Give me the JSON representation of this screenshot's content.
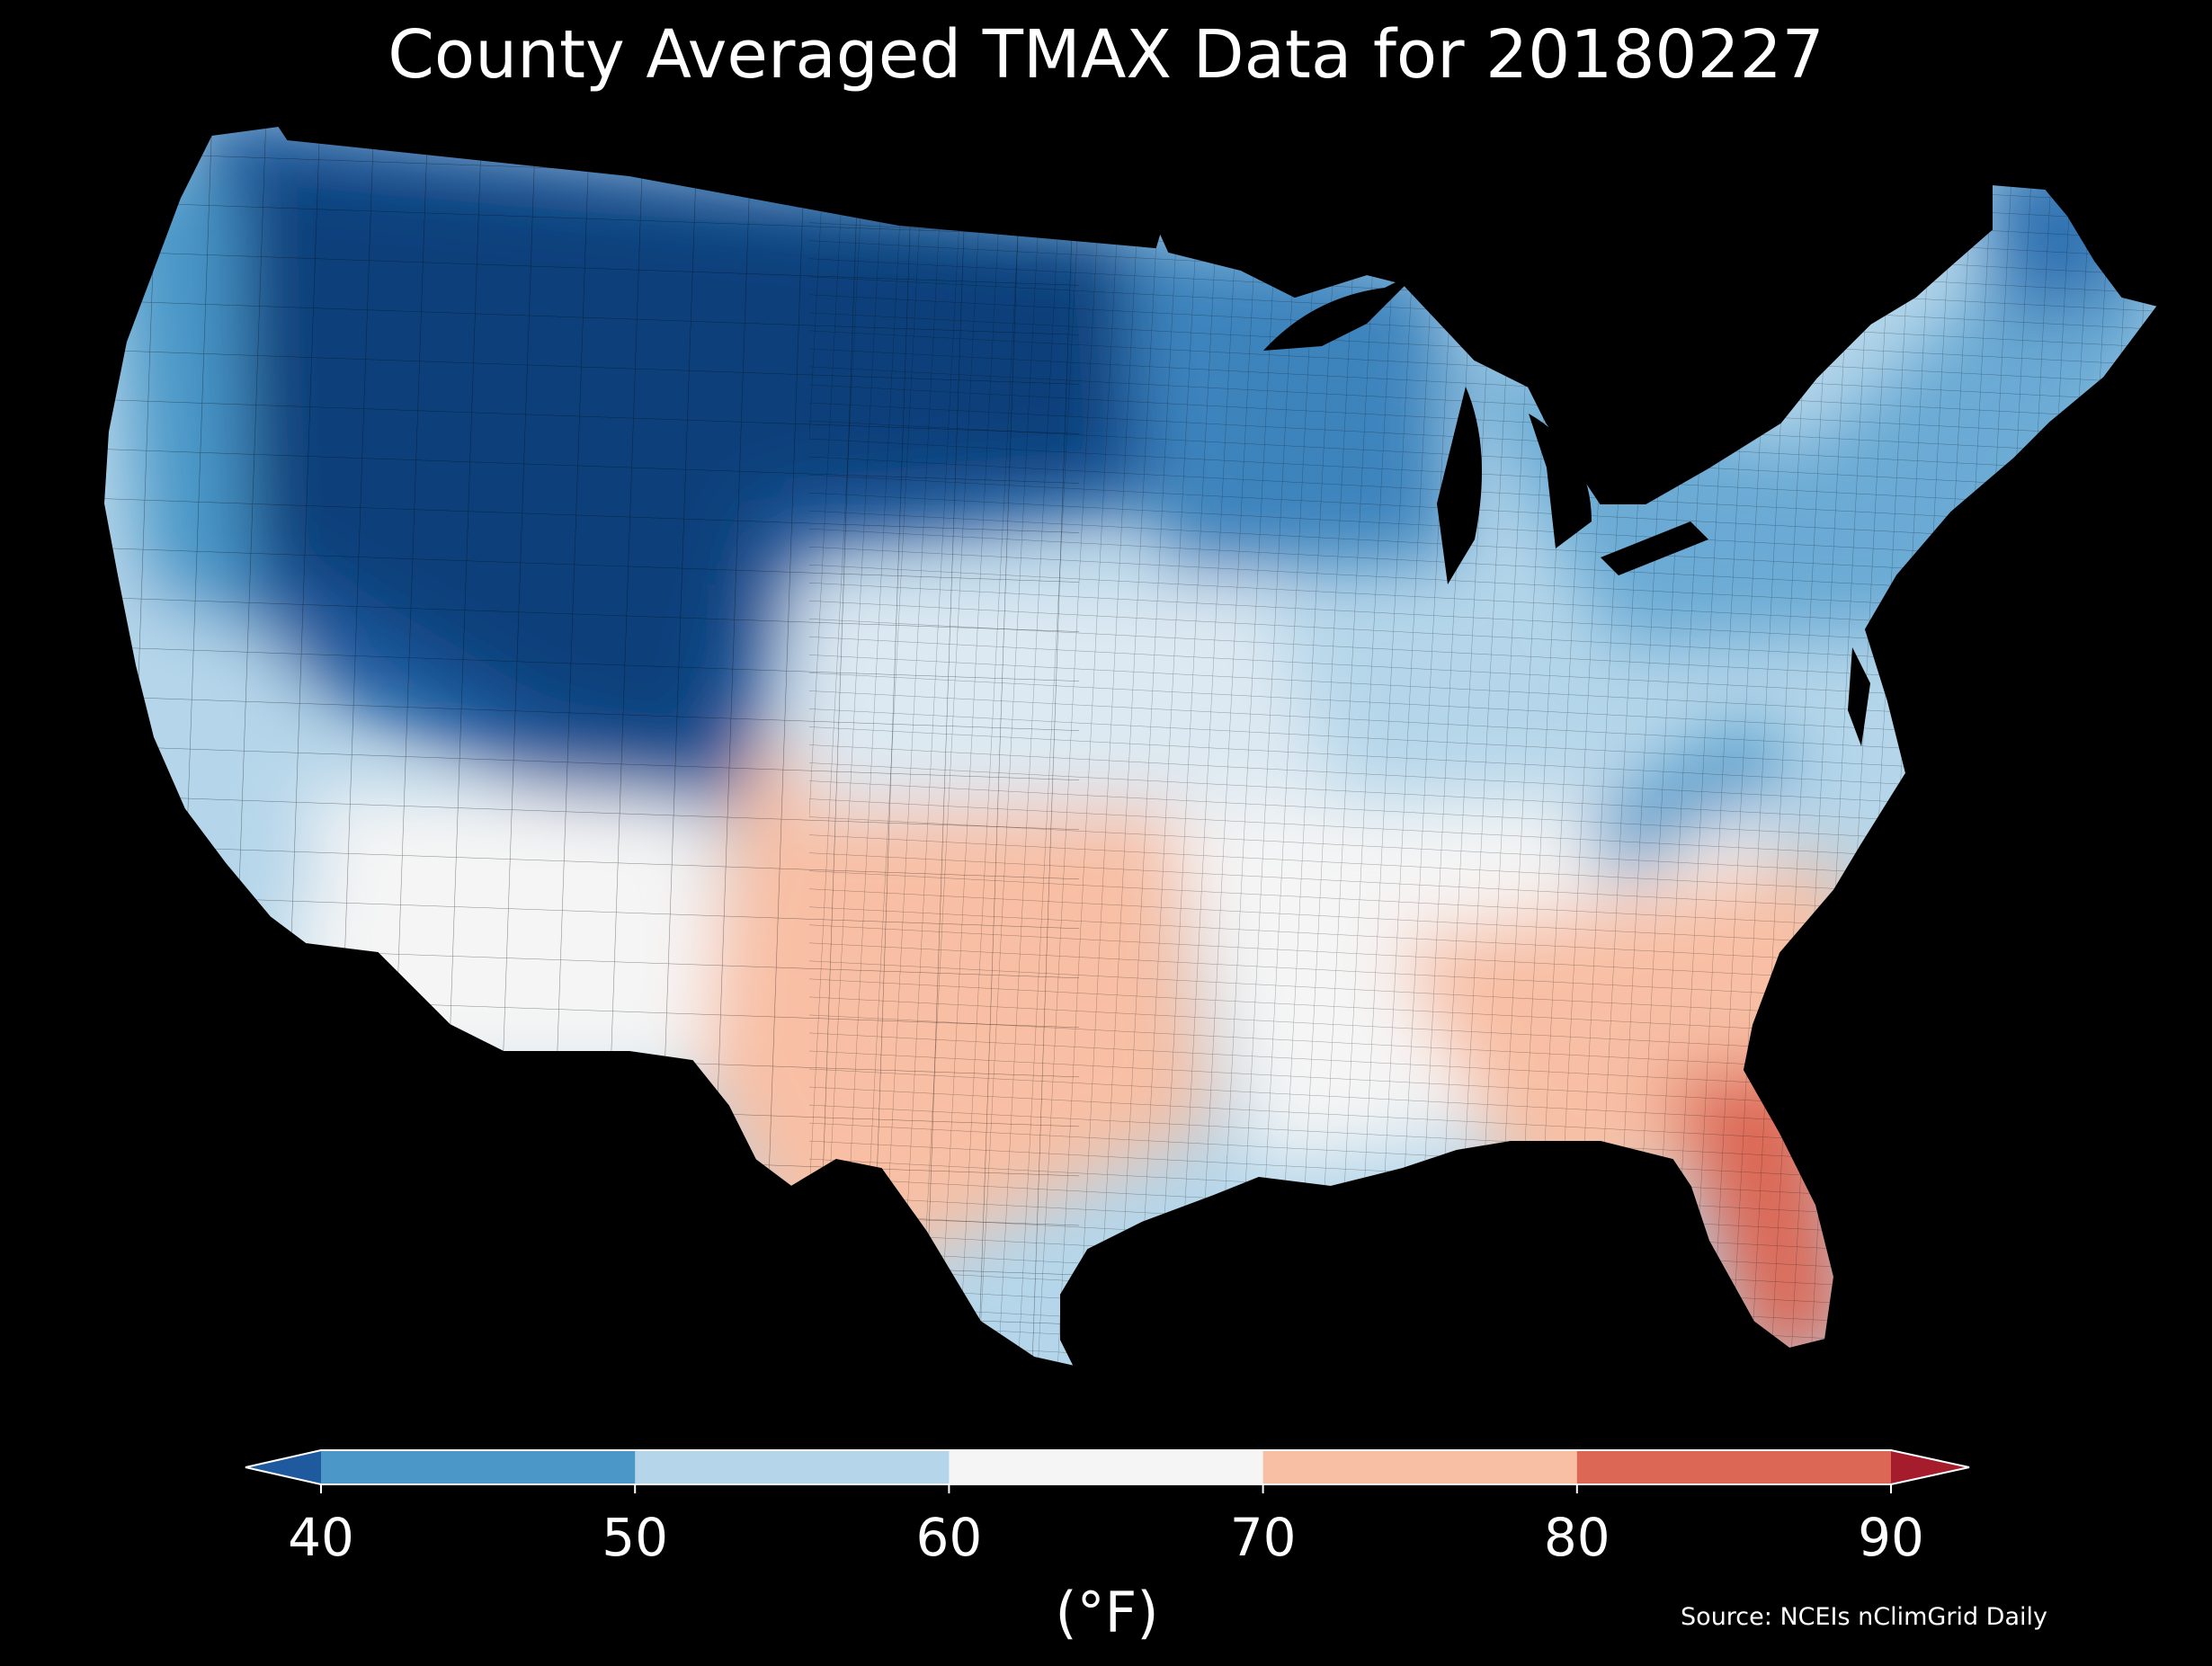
{
  "title": "County Averaged TMAX Data for 20180227",
  "source": "Source: NCEIs nClimGrid Daily",
  "colorbar": {
    "unit_label": "(°F)",
    "ticks": [
      "40",
      "50",
      "60",
      "70",
      "80",
      "90"
    ],
    "bins": [
      {
        "range": "<40",
        "color": "#1f5a9f"
      },
      {
        "range": "40-50",
        "color": "#4a97c8"
      },
      {
        "range": "50-60",
        "color": "#b5d6ea"
      },
      {
        "range": "60-70",
        "color": "#f5f5f5"
      },
      {
        "range": "70-80",
        "color": "#f8bfa4"
      },
      {
        "range": "80-90",
        "color": "#dc6754"
      },
      {
        "range": ">90",
        "color": "#a51d2d"
      }
    ]
  },
  "map_regions": [
    {
      "region": "Pacific Northwest coast",
      "tmax_bin": "40-50"
    },
    {
      "region": "Northern Rockies / Montana",
      "tmax_bin": "<40"
    },
    {
      "region": "Northern Plains / Dakotas",
      "tmax_bin": "<40"
    },
    {
      "region": "Great Basin / Nevada",
      "tmax_bin": "<40"
    },
    {
      "region": "Colorado Rockies",
      "tmax_bin": "<40"
    },
    {
      "region": "Upper Midwest / Minnesota",
      "tmax_bin": "40-50"
    },
    {
      "region": "Great Lakes",
      "tmax_bin": "40-50"
    },
    {
      "region": "New England",
      "tmax_bin": "40-50"
    },
    {
      "region": "Northern Maine",
      "tmax_bin": "<40"
    },
    {
      "region": "Central Plains",
      "tmax_bin": "50-60"
    },
    {
      "region": "Ohio Valley / Mid-Atlantic",
      "tmax_bin": "50-60"
    },
    {
      "region": "Appalachians",
      "tmax_bin": "40-50"
    },
    {
      "region": "California coast",
      "tmax_bin": "50-60"
    },
    {
      "region": "Desert Southwest",
      "tmax_bin": "60-70"
    },
    {
      "region": "Southern Plains / Texas",
      "tmax_bin": "70-80"
    },
    {
      "region": "Deep South",
      "tmax_bin": "60-70"
    },
    {
      "region": "Southeast / Georgia",
      "tmax_bin": "70-80"
    },
    {
      "region": "Florida peninsula",
      "tmax_bin": "80-90"
    }
  ]
}
